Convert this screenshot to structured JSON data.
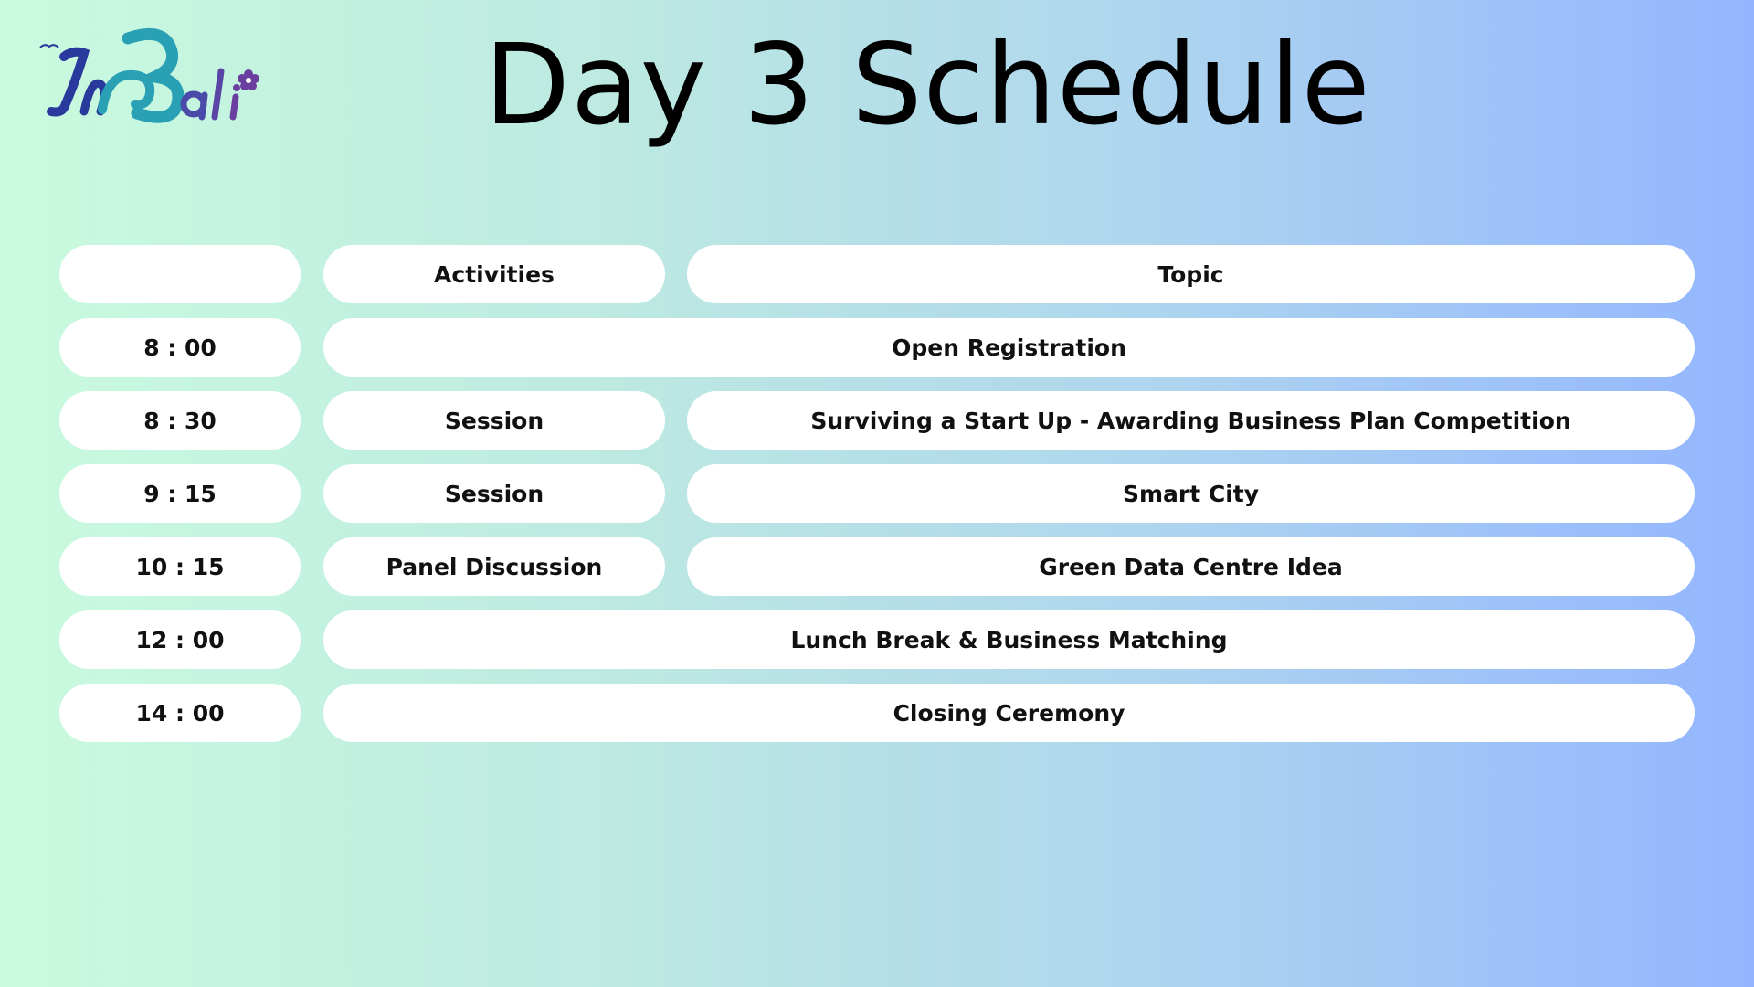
{
  "logo": {
    "text": "InBali",
    "colors": {
      "primary": "#2a3a9c",
      "wave": "#2aa0b5",
      "accent": "#6a3fa0"
    }
  },
  "title": "Day 3 Schedule",
  "headers": {
    "time": "",
    "activities": "Activities",
    "topic": "Topic"
  },
  "rows": [
    {
      "time": "8 : 00",
      "span": "Open Registration"
    },
    {
      "time": "8 : 30",
      "activity": "Session",
      "topic": "Surviving a Start Up - Awarding Business Plan Competition"
    },
    {
      "time": "9 : 15",
      "activity": "Session",
      "topic": "Smart City"
    },
    {
      "time": "10 : 15",
      "activity": "Panel Discussion",
      "topic": "Green Data Centre Idea"
    },
    {
      "time": "12 : 00",
      "span": "Lunch Break & Business Matching"
    },
    {
      "time": "14 : 00",
      "span": "Closing Ceremony"
    }
  ],
  "colors": {
    "gradient_start": "#c9fbdf",
    "gradient_end": "#93b5ff",
    "pill": "#ffffff",
    "text": "#111111"
  }
}
